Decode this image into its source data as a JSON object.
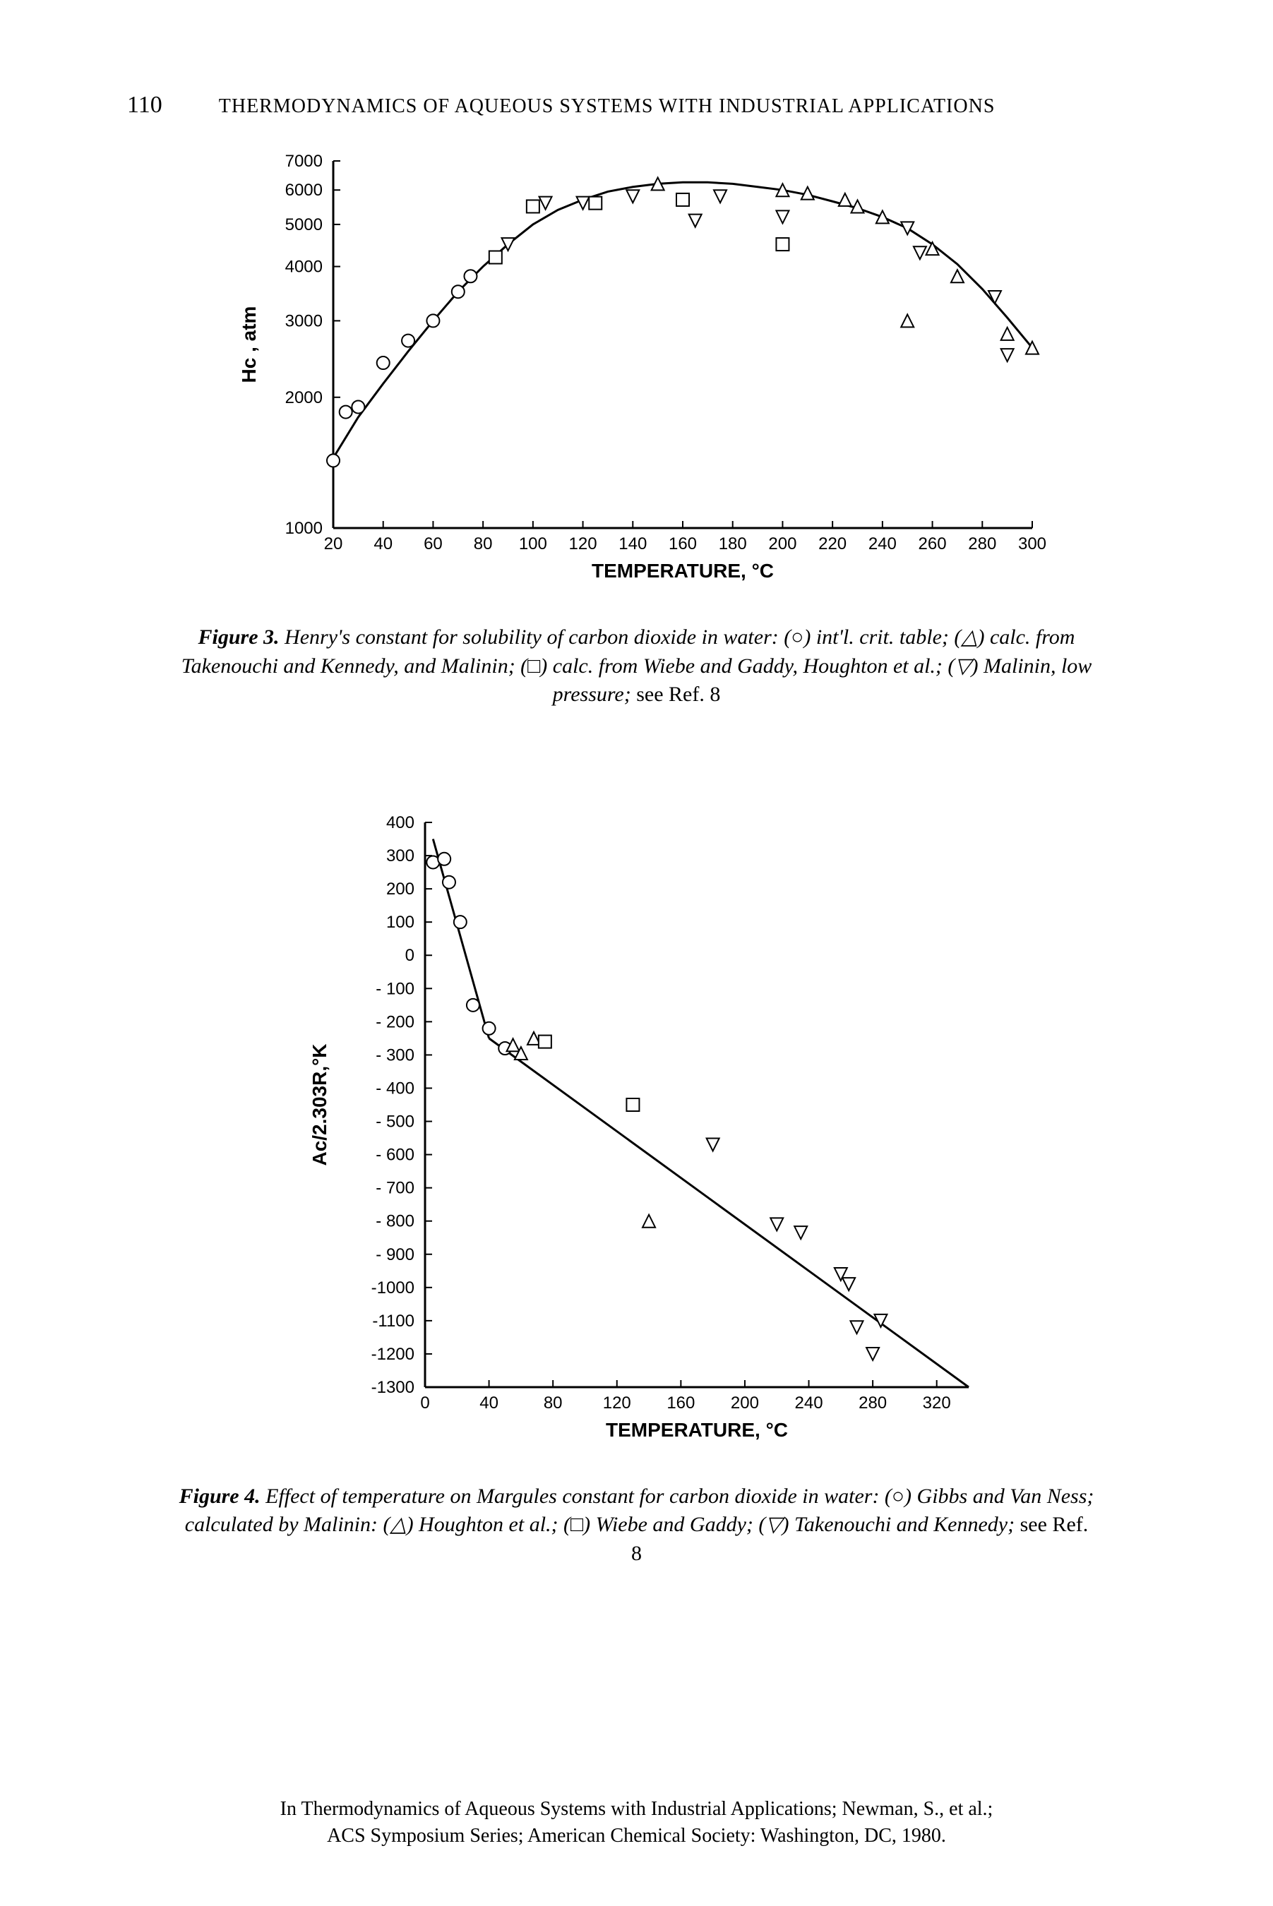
{
  "page_number": "110",
  "running_head": "THERMODYNAMICS OF AQUEOUS SYSTEMS WITH INDUSTRIAL APPLICATIONS",
  "figure3": {
    "type": "scatter+line",
    "x_label": "TEMPERATURE, °C",
    "y_label": "Hc , atm",
    "x_ticks": [
      20,
      40,
      60,
      80,
      100,
      120,
      140,
      160,
      180,
      200,
      220,
      240,
      260,
      280,
      300
    ],
    "y_ticks": [
      1000,
      2000,
      3000,
      4000,
      5000,
      6000,
      7000
    ],
    "y_scale": "log",
    "xlim": [
      20,
      300
    ],
    "ylim": [
      1000,
      7000
    ],
    "curve": [
      [
        20,
        1450
      ],
      [
        30,
        1800
      ],
      [
        40,
        2150
      ],
      [
        50,
        2550
      ],
      [
        60,
        3000
      ],
      [
        70,
        3500
      ],
      [
        80,
        4000
      ],
      [
        90,
        4500
      ],
      [
        100,
        5000
      ],
      [
        110,
        5400
      ],
      [
        120,
        5700
      ],
      [
        130,
        5950
      ],
      [
        140,
        6100
      ],
      [
        150,
        6200
      ],
      [
        160,
        6250
      ],
      [
        170,
        6250
      ],
      [
        180,
        6200
      ],
      [
        190,
        6100
      ],
      [
        200,
        6000
      ],
      [
        210,
        5850
      ],
      [
        220,
        5650
      ],
      [
        230,
        5450
      ],
      [
        240,
        5200
      ],
      [
        250,
        4900
      ],
      [
        260,
        4500
      ],
      [
        270,
        4050
      ],
      [
        280,
        3550
      ],
      [
        290,
        3050
      ],
      [
        300,
        2600
      ]
    ],
    "series": {
      "circle": [
        [
          20,
          1430
        ],
        [
          25,
          1850
        ],
        [
          30,
          1900
        ],
        [
          40,
          2400
        ],
        [
          50,
          2700
        ],
        [
          60,
          3000
        ],
        [
          70,
          3500
        ],
        [
          75,
          3800
        ]
      ],
      "square": [
        [
          85,
          4200
        ],
        [
          100,
          5500
        ],
        [
          125,
          5600
        ],
        [
          160,
          5700
        ],
        [
          200,
          4500
        ]
      ],
      "triangle_down": [
        [
          90,
          4500
        ],
        [
          105,
          5600
        ],
        [
          120,
          5600
        ],
        [
          140,
          5800
        ],
        [
          175,
          5800
        ],
        [
          165,
          5100
        ],
        [
          200,
          5200
        ],
        [
          250,
          4900
        ],
        [
          255,
          4300
        ],
        [
          285,
          3400
        ],
        [
          290,
          2500
        ]
      ],
      "triangle_up": [
        [
          150,
          6200
        ],
        [
          200,
          6000
        ],
        [
          210,
          5900
        ],
        [
          225,
          5700
        ],
        [
          230,
          5500
        ],
        [
          240,
          5200
        ],
        [
          250,
          3000
        ],
        [
          260,
          4400
        ],
        [
          270,
          3800
        ],
        [
          290,
          2800
        ],
        [
          300,
          2600
        ]
      ]
    },
    "colors": {
      "axis": "#000000",
      "curve": "#000000",
      "marker_stroke": "#000000",
      "marker_fill": "#ffffff",
      "background": "#ffffff"
    },
    "line_width": 3,
    "marker_size": 9,
    "axis_fontsize": 24,
    "label_fontsize": 28,
    "caption_label": "Figure 3.",
    "caption_text_1": "Henry's constant for solubility of carbon dioxide in water: (○) int'l. crit. table; (△) calc. from Takenouchi and Kennedy, and Malinin; (□) calc. from Wiebe and Gaddy, Houghton et al.; (▽) Malinin, low pressure; ",
    "caption_text_2": "see Ref. 8"
  },
  "figure4": {
    "type": "scatter+line",
    "x_label": "TEMPERATURE, °C",
    "y_label": "Ac/2.303R,°K",
    "x_ticks": [
      0,
      40,
      80,
      120,
      160,
      200,
      240,
      280,
      320
    ],
    "y_ticks": [
      -1300,
      -1200,
      -1100,
      -1000,
      -900,
      -800,
      -700,
      -600,
      -500,
      -400,
      -300,
      -200,
      -100,
      0,
      100,
      200,
      300,
      400
    ],
    "xlim": [
      0,
      340
    ],
    "ylim": [
      -1300,
      400
    ],
    "segment1": [
      [
        5,
        350
      ],
      [
        40,
        -250
      ]
    ],
    "segment2": [
      [
        40,
        -250
      ],
      [
        340,
        -1300
      ]
    ],
    "series": {
      "circle": [
        [
          5,
          280
        ],
        [
          12,
          290
        ],
        [
          15,
          220
        ],
        [
          22,
          100
        ],
        [
          30,
          -150
        ],
        [
          40,
          -220
        ],
        [
          50,
          -280
        ]
      ],
      "triangle_up": [
        [
          55,
          -270
        ],
        [
          60,
          -295
        ],
        [
          68,
          -250
        ],
        [
          140,
          -800
        ]
      ],
      "square": [
        [
          75,
          -260
        ],
        [
          130,
          -450
        ]
      ],
      "triangle_down": [
        [
          180,
          -570
        ],
        [
          220,
          -810
        ],
        [
          235,
          -835
        ],
        [
          260,
          -960
        ],
        [
          265,
          -990
        ],
        [
          270,
          -1120
        ],
        [
          285,
          -1100
        ],
        [
          280,
          -1200
        ]
      ]
    },
    "colors": {
      "axis": "#000000",
      "curve": "#000000",
      "marker_stroke": "#000000",
      "marker_fill": "#ffffff",
      "background": "#ffffff"
    },
    "line_width": 3,
    "marker_size": 9,
    "axis_fontsize": 24,
    "label_fontsize": 28,
    "caption_label": "Figure 4.",
    "caption_text_1": "Effect of temperature on Margules constant for carbon dioxide in water: (○) Gibbs and Van Ness; calculated by Malinin: (△) Houghton et al.; (□) Wiebe and Gaddy; (▽) Takenouchi and Kennedy; ",
    "caption_text_2": "see Ref. 8"
  },
  "footer_line1": "In Thermodynamics of Aqueous Systems with Industrial Applications; Newman, S., et al.;",
  "footer_line2": "ACS Symposium Series; American Chemical Society: Washington, DC, 1980."
}
